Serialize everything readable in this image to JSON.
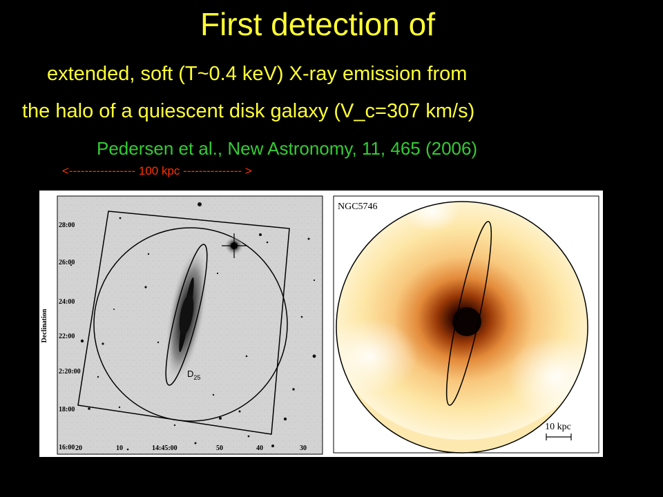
{
  "slide": {
    "title": "First detection of",
    "subtitle_line1": "extended, soft (T~0.4 keV) X-ray emission from",
    "subtitle_line2": "the halo of a quiescent disk galaxy (V_c=307 km/s)",
    "citation": "Pedersen et al., New Astronomy, 11, 465 (2006)",
    "scale_bar_text": "<----------------- 100 kpc --------------- >"
  },
  "left_panel": {
    "y_axis_label": "Declination",
    "dec_ticks": [
      "28:00",
      "26:00",
      "24:00",
      "22:00",
      "2:20:00",
      "18:00",
      "16:00"
    ],
    "ra_ticks": [
      "20",
      "10",
      "14:45:00",
      "50",
      "40",
      "30"
    ],
    "d25_label": "D",
    "d25_subscript": "25"
  },
  "right_panel": {
    "object_name": "NGC5746",
    "scale_label": "10 kpc"
  },
  "colors": {
    "title": "#ffff33",
    "citation": "#33cc33",
    "scale_bar": "#ff3300",
    "background": "#000000"
  }
}
